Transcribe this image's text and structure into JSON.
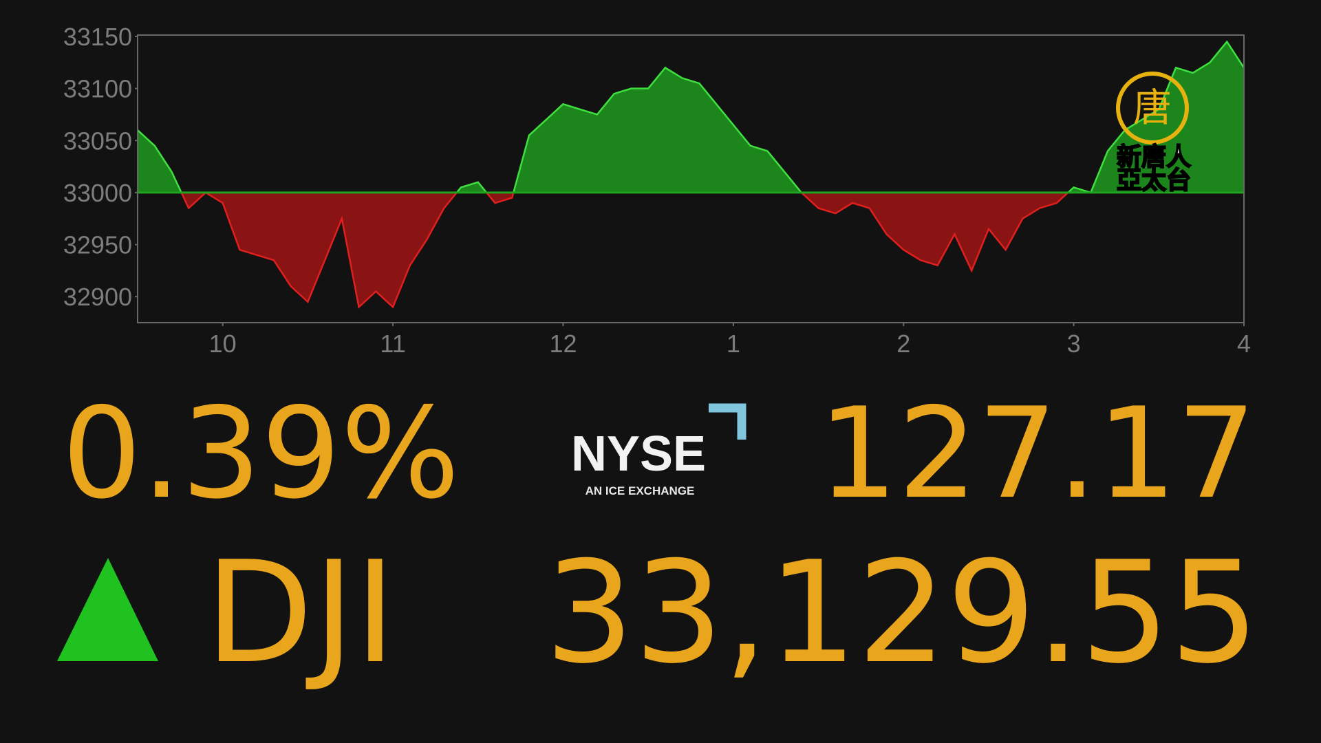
{
  "chart_data": {
    "type": "area",
    "x": [
      9.5,
      9.6,
      9.7,
      9.8,
      9.9,
      10.0,
      10.1,
      10.2,
      10.3,
      10.4,
      10.5,
      10.6,
      10.7,
      10.8,
      10.9,
      11.0,
      11.1,
      11.2,
      11.3,
      11.4,
      11.5,
      11.6,
      11.7,
      11.8,
      11.9,
      12.0,
      12.1,
      12.2,
      12.3,
      12.4,
      12.5,
      12.6,
      12.7,
      12.8,
      12.9,
      13.0,
      13.1,
      13.2,
      13.3,
      13.4,
      13.5,
      13.6,
      13.7,
      13.8,
      13.9,
      14.0,
      14.1,
      14.2,
      14.3,
      14.4,
      14.5,
      14.6,
      14.7,
      14.8,
      14.9,
      15.0,
      15.1,
      15.2,
      15.3,
      15.4,
      15.5,
      15.6,
      15.7,
      15.8,
      15.9,
      16.0
    ],
    "values": [
      33060,
      33045,
      33020,
      32985,
      33000,
      32990,
      32945,
      32940,
      32935,
      32910,
      32895,
      32935,
      32975,
      32890,
      32905,
      32890,
      32930,
      32955,
      32985,
      33005,
      33010,
      32990,
      32995,
      33055,
      33070,
      33085,
      33080,
      33075,
      33095,
      33100,
      33100,
      33120,
      33110,
      33105,
      33085,
      33065,
      33045,
      33040,
      33020,
      33000,
      32985,
      32980,
      32990,
      32985,
      32960,
      32945,
      32935,
      32930,
      32960,
      32925,
      32965,
      32945,
      32975,
      32985,
      32990,
      33005,
      33000,
      33040,
      33060,
      33070,
      33080,
      33120,
      33115,
      33125,
      33145,
      33120
    ],
    "baseline": 33000,
    "color_above": "#1e9b1e",
    "color_below": "#a01515",
    "line_above": "#3fe03f",
    "line_below": "#e01f1f",
    "xlim": [
      9.5,
      16
    ],
    "xticks": [
      10,
      11,
      12,
      {
        "value": 13,
        "label": "1"
      },
      {
        "value": 14,
        "label": "2"
      },
      {
        "value": 15,
        "label": "3"
      },
      {
        "value": 16,
        "label": "4"
      }
    ],
    "ylim": [
      32875,
      33150
    ],
    "yticks": [
      32900,
      32950,
      33000,
      33050,
      33100,
      33150
    ]
  },
  "ticker": {
    "percent_change": "0.39%",
    "point_change": "127.17",
    "symbol": "DJI",
    "price": "33,129.55"
  },
  "exchange_logo": {
    "name": "NYSE",
    "tagline": "AN ICE EXCHANGE"
  },
  "watermark": {
    "emblem": "唐",
    "line1": "新唐人",
    "line2": "亞太台"
  }
}
